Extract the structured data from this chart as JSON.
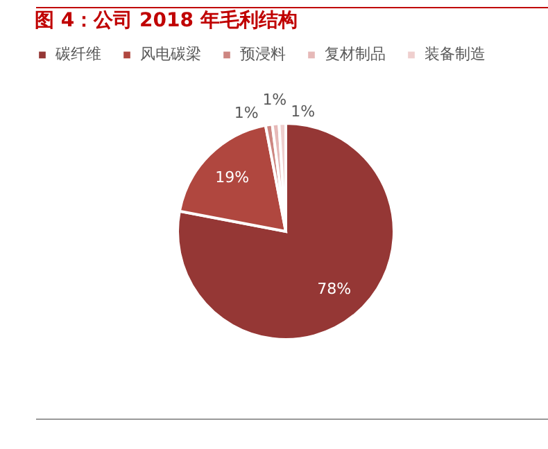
{
  "chart_data": {
    "type": "pie",
    "title": "图 4：公司 2018 年毛利结构",
    "categories": [
      "碳纤维",
      "风电碳梁",
      "预浸料",
      "复材制品",
      "装备制造"
    ],
    "values": [
      78,
      19,
      1,
      1,
      1
    ],
    "value_labels": [
      "78%",
      "19%",
      "1%",
      "1%",
      "1%"
    ],
    "colors": [
      "#953735",
      "#b0473f",
      "#cd8681",
      "#e6b9b8",
      "#efcfce"
    ],
    "legend": "top"
  }
}
